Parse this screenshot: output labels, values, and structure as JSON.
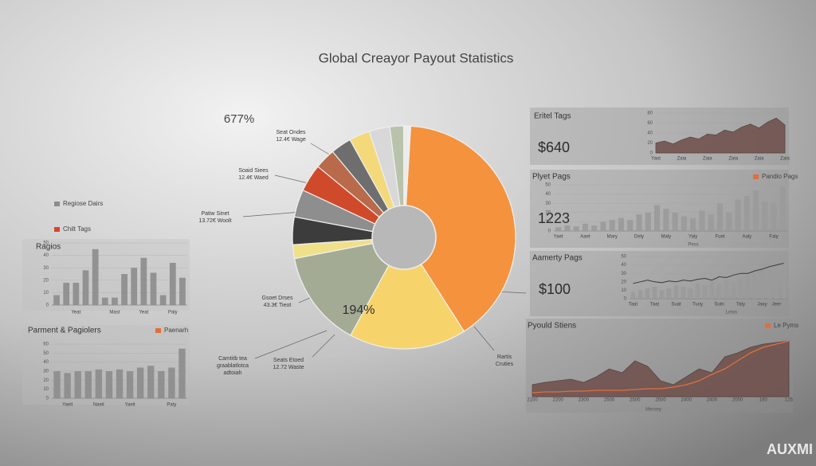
{
  "title": "Global Creayor Payout Statistics",
  "watermark": "AUXMI",
  "chart_data": [
    {
      "type": "pie",
      "annotation": "677%",
      "center_label": "194%",
      "values": [
        40,
        17,
        14,
        2,
        4,
        4,
        4,
        3,
        3,
        3,
        3,
        2,
        1
      ],
      "colors": [
        "#f5923e",
        "#f7d46b",
        "#a4ab94",
        "#f0e08a",
        "#3c3c3c",
        "#8e8e8e",
        "#cf4a2a",
        "#b86a4a",
        "#6e6e6e",
        "#f3d97a",
        "#d8d8d8",
        "#b9c2ab",
        "#ececec"
      ],
      "callouts": [
        {
          "lines": [
            "Seat Ondes",
            "12.4€ Wage"
          ]
        },
        {
          "lines": [
            "Soaid Siees",
            "12.4€ Waed"
          ]
        },
        {
          "lines": [
            "Patiw Sinet",
            "13.72€ Woolt"
          ]
        },
        {
          "lines": [
            "Gsoet Drses",
            "43.3€ Tieot"
          ]
        },
        {
          "lines": [
            "Camtitb tea",
            "graablatlotca",
            "adtoiah"
          ]
        },
        {
          "lines": [
            "Seats Etoed",
            "12.72 Waste"
          ]
        },
        {
          "lines": [
            "Rartis",
            "Cruties"
          ]
        }
      ]
    },
    {
      "type": "bar",
      "title": "Ragios",
      "legend": [
        {
          "label": "Regiose Dairs",
          "color": "#8c8c8c"
        },
        {
          "label": "Chilt Tags",
          "color": "#d9452b"
        }
      ],
      "categories": [
        null,
        null,
        "Yeat",
        null,
        null,
        null,
        "Mast",
        null,
        null,
        "Yeat",
        null,
        null,
        "Paly",
        null
      ],
      "values": [
        8,
        18,
        18,
        28,
        45,
        6,
        6,
        25,
        30,
        38,
        26,
        8,
        34,
        22
      ],
      "color": "#8c8c8c",
      "ylim": [
        0,
        50
      ],
      "yticks": [
        0,
        10,
        20,
        30,
        40,
        50
      ]
    },
    {
      "type": "bar",
      "title": "Parment & Pagiolers",
      "legend": [
        {
          "label": "Paenarh",
          "color": "#e0703a"
        }
      ],
      "categories": [
        null,
        "Yaeit",
        null,
        null,
        "Naeit",
        null,
        null,
        "Yaeit",
        null,
        null,
        null,
        "Paty",
        null
      ],
      "values": [
        30,
        28,
        30,
        30,
        32,
        30,
        32,
        30,
        34,
        36,
        30,
        34,
        55
      ],
      "color": "#8c8c8c",
      "ylim": [
        0,
        60
      ],
      "yticks": [
        0,
        10,
        20,
        30,
        40,
        50,
        60
      ]
    },
    {
      "type": "area",
      "title": "Eritel Tags",
      "value_text": "$640",
      "categories": [
        "Yaot",
        null,
        null,
        "Zaia",
        null,
        null,
        "Zaia",
        null,
        null,
        "Zaia",
        null,
        null,
        "Zaia",
        null,
        null,
        "Zaia"
      ],
      "values": [
        20,
        24,
        18,
        26,
        32,
        28,
        38,
        36,
        46,
        42,
        52,
        58,
        50,
        62,
        70,
        56
      ],
      "color": "#6e4e4a",
      "ylim": [
        0,
        80
      ],
      "yticks": [
        0,
        20,
        40,
        60,
        80
      ]
    },
    {
      "type": "bar",
      "title": "Plyet Pags",
      "value_text": "1223",
      "legend": [
        {
          "label": "Pandio Pags",
          "color": "#e0703a"
        }
      ],
      "categories": [
        "Yaet",
        null,
        null,
        "Aaet",
        null,
        null,
        "Mary",
        null,
        null,
        "Dely",
        null,
        null,
        "Maly",
        null,
        null,
        "Yaly",
        null,
        null,
        "Fuet",
        null,
        null,
        "Aaly",
        null,
        null,
        "Faly",
        null
      ],
      "values": [
        4,
        6,
        5,
        8,
        6,
        10,
        12,
        14,
        12,
        18,
        20,
        28,
        24,
        20,
        16,
        14,
        22,
        18,
        30,
        20,
        34,
        38,
        44,
        32,
        30,
        48
      ],
      "color": "#9a9a9a",
      "ylim": [
        0,
        50
      ],
      "yticks": [
        0,
        10,
        20,
        30,
        40,
        50
      ],
      "x_title": "Pess"
    },
    {
      "type": "bar",
      "title": "Aamerty Pags",
      "value_text": "$100",
      "categories": [
        "Taat",
        null,
        null,
        "Taat",
        null,
        null,
        "Suat",
        null,
        null,
        "Tuoy",
        null,
        null,
        "Sutn",
        null,
        null,
        "Taty",
        null,
        null,
        "Jaxy",
        null,
        "Jeer",
        null
      ],
      "values": [
        8,
        10,
        12,
        14,
        10,
        12,
        16,
        14,
        12,
        18,
        16,
        20,
        18,
        22,
        20,
        24,
        28,
        30,
        34,
        36,
        40,
        44
      ],
      "line_values": [
        18,
        20,
        22,
        20,
        19,
        21,
        20,
        22,
        21,
        23,
        24,
        22,
        26,
        25,
        28,
        30,
        30,
        33,
        35,
        38,
        40,
        42
      ],
      "color": "#9a9a9a",
      "line_color": "#3a3a3a",
      "ylim": [
        0,
        50
      ],
      "yticks": [
        0,
        10,
        20,
        30,
        40,
        50
      ],
      "x_title": "Lelos"
    },
    {
      "type": "area",
      "title": "Pyould Stiens",
      "legend": [
        {
          "label": "Le Pyms",
          "color": "#e0703a"
        }
      ],
      "categories": [
        "2100",
        null,
        "2200",
        null,
        "2300",
        null,
        "2500",
        null,
        "2500",
        null,
        "2500",
        null,
        "2400",
        null,
        "2400",
        null,
        "2000",
        null,
        "160",
        null,
        "125"
      ],
      "values": [
        15,
        18,
        20,
        22,
        18,
        25,
        35,
        30,
        45,
        38,
        20,
        15,
        25,
        35,
        30,
        50,
        55,
        62,
        66,
        68,
        70
      ],
      "line_values": [
        5,
        6,
        6,
        7,
        7,
        8,
        8,
        8,
        9,
        10,
        10,
        12,
        15,
        20,
        28,
        35,
        45,
        55,
        62,
        66,
        70
      ],
      "color": "#6e4e4a",
      "line_color": "#e0703a",
      "ylim": [
        0,
        80
      ],
      "x_title": "Mersey"
    }
  ]
}
